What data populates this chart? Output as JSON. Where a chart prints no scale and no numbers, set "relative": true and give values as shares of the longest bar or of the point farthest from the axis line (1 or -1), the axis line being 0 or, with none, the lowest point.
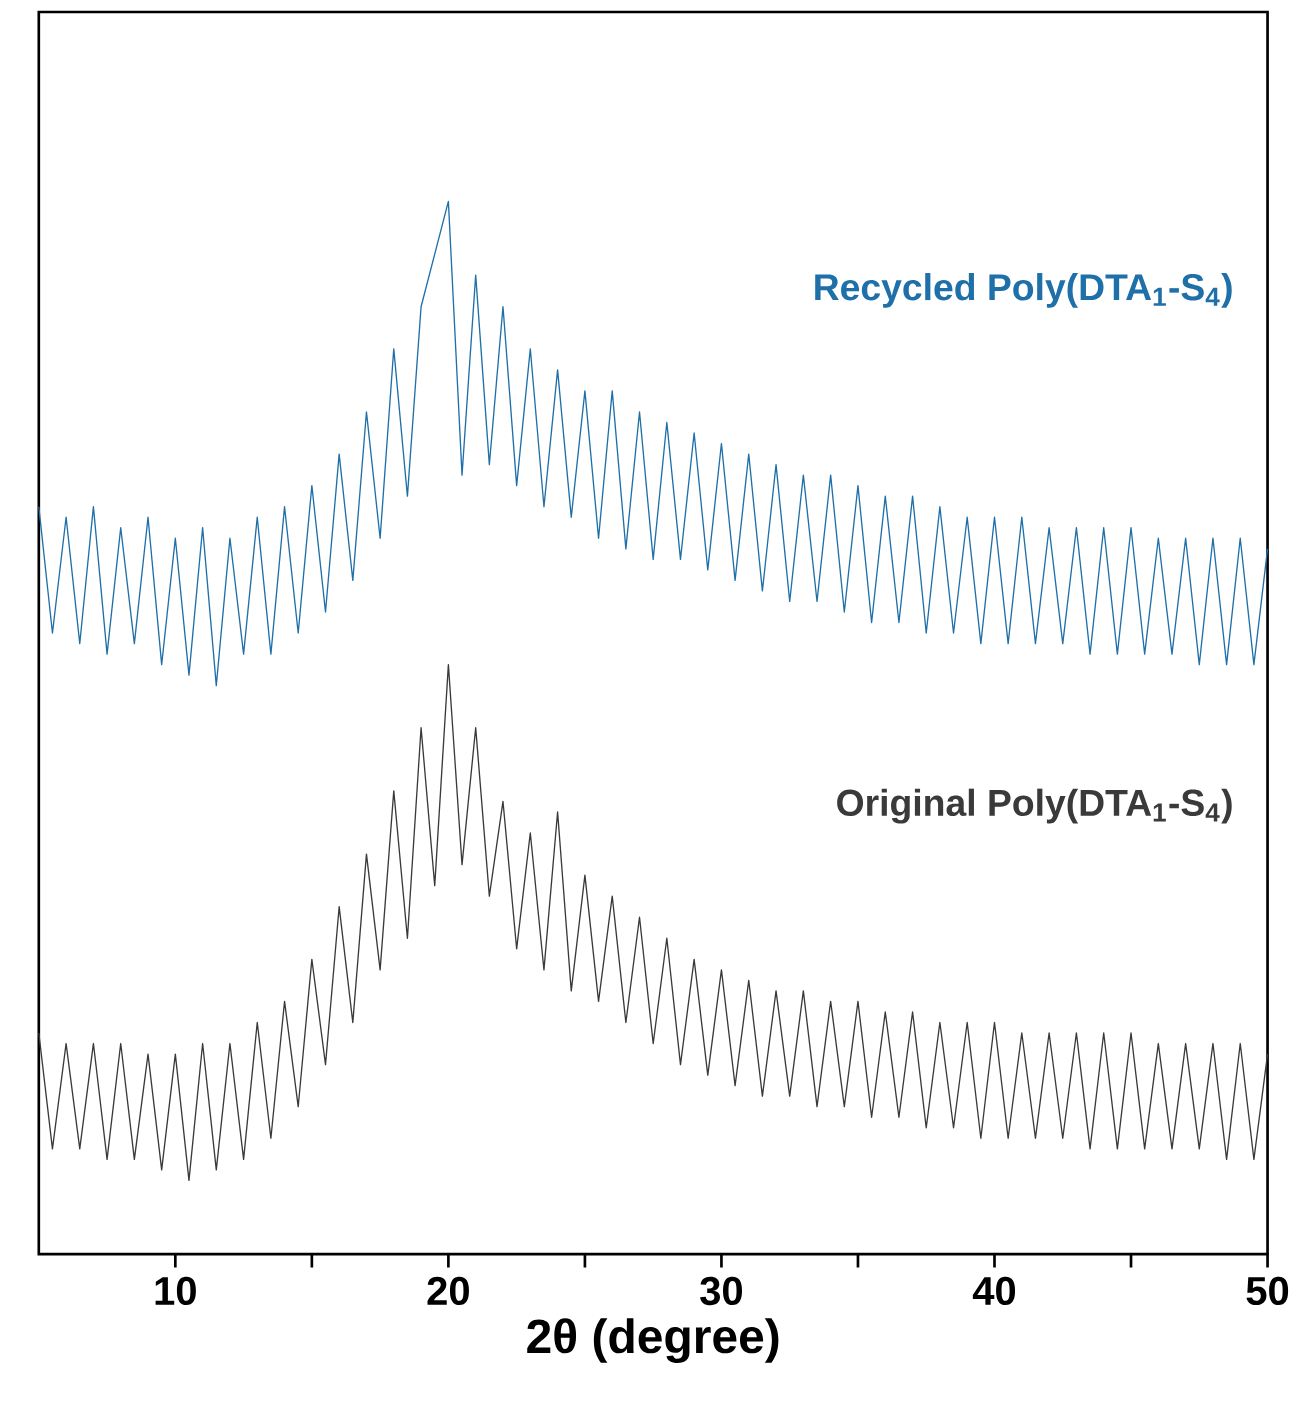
{
  "chart_data": {
    "type": "line",
    "relative": true,
    "xlabel": "2θ (degree)",
    "xlim": [
      5,
      50
    ],
    "xticks": [
      10,
      {
        "value": 15,
        "label": null
      },
      20,
      {
        "value": 25,
        "label": null
      },
      30,
      {
        "value": 35,
        "label": null
      },
      40,
      {
        "value": 45,
        "label": null
      },
      50
    ],
    "x": [
      5,
      5.5,
      6,
      6.5,
      7,
      7.5,
      8,
      8.5,
      9,
      9.5,
      10,
      10.5,
      11,
      11.5,
      12,
      12.5,
      13,
      13.5,
      14,
      14.5,
      15,
      15.5,
      16,
      16.5,
      17,
      17.5,
      18,
      18.5,
      19,
      19.5,
      20,
      20.5,
      21,
      21.5,
      22,
      22.5,
      23,
      23.5,
      24,
      24.5,
      25,
      25.5,
      26,
      26.5,
      27,
      27.5,
      28,
      28.5,
      29,
      29.5,
      30,
      30.5,
      31,
      31.5,
      32,
      32.5,
      33,
      33.5,
      34,
      34.5,
      35,
      35.5,
      36,
      36.5,
      37,
      37.5,
      38,
      38.5,
      39,
      39.5,
      40,
      40.5,
      41,
      41.5,
      42,
      42.5,
      43,
      43.5,
      44,
      44.5,
      45,
      45.5,
      46,
      46.5,
      47,
      47.5,
      48,
      48.5,
      49,
      49.5,
      50
    ],
    "series": [
      {
        "name": "Recycled Poly(DTA$_{1}$-S$_{4}$)",
        "color": "#1f6fa8",
        "values": [
          0.71,
          0.59,
          0.7,
          0.58,
          0.71,
          0.57,
          0.69,
          0.58,
          0.7,
          0.56,
          0.68,
          0.55,
          0.69,
          0.54,
          0.68,
          0.57,
          0.7,
          0.57,
          0.71,
          0.59,
          0.73,
          0.61,
          0.76,
          0.64,
          0.8,
          0.68,
          0.86,
          0.72,
          0.9,
          0.95,
          1.0,
          0.74,
          0.93,
          0.75,
          0.9,
          0.73,
          0.86,
          0.71,
          0.84,
          0.7,
          0.82,
          0.68,
          0.82,
          0.67,
          0.8,
          0.66,
          0.79,
          0.66,
          0.78,
          0.65,
          0.77,
          0.64,
          0.76,
          0.63,
          0.75,
          0.62,
          0.74,
          0.62,
          0.74,
          0.61,
          0.73,
          0.6,
          0.72,
          0.6,
          0.72,
          0.59,
          0.71,
          0.59,
          0.7,
          0.58,
          0.7,
          0.58,
          0.7,
          0.58,
          0.69,
          0.58,
          0.69,
          0.57,
          0.69,
          0.57,
          0.69,
          0.57,
          0.68,
          0.57,
          0.68,
          0.56,
          0.68,
          0.56,
          0.68,
          0.56,
          0.67
        ]
      },
      {
        "name": "Original Poly(DTA$_{1}$-S$_{4}$)",
        "color": "#3a3a3a",
        "values": [
          0.21,
          0.1,
          0.2,
          0.1,
          0.2,
          0.09,
          0.2,
          0.09,
          0.19,
          0.08,
          0.19,
          0.07,
          0.2,
          0.08,
          0.2,
          0.09,
          0.22,
          0.11,
          0.24,
          0.14,
          0.28,
          0.18,
          0.33,
          0.22,
          0.38,
          0.27,
          0.44,
          0.3,
          0.5,
          0.35,
          0.56,
          0.37,
          0.5,
          0.34,
          0.43,
          0.29,
          0.4,
          0.27,
          0.42,
          0.25,
          0.36,
          0.24,
          0.34,
          0.22,
          0.32,
          0.2,
          0.3,
          0.18,
          0.28,
          0.17,
          0.27,
          0.16,
          0.26,
          0.15,
          0.25,
          0.15,
          0.25,
          0.14,
          0.24,
          0.14,
          0.24,
          0.13,
          0.23,
          0.13,
          0.23,
          0.12,
          0.22,
          0.12,
          0.22,
          0.11,
          0.22,
          0.11,
          0.21,
          0.11,
          0.21,
          0.11,
          0.21,
          0.1,
          0.21,
          0.1,
          0.21,
          0.1,
          0.2,
          0.1,
          0.2,
          0.1,
          0.2,
          0.09,
          0.2,
          0.09,
          0.19
        ]
      }
    ]
  }
}
